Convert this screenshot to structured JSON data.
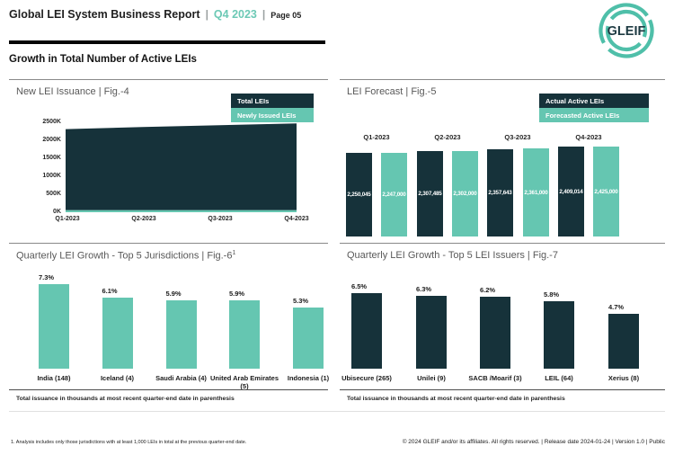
{
  "header": {
    "title": "Global LEI System Business Report",
    "separator": "|",
    "quarter": "Q4 2023",
    "page": "Page 05",
    "logo_text": "GLEIF"
  },
  "section_title": "Growth in Total Number of Active LEIs",
  "colors": {
    "dark": "#16323a",
    "teal": "#65c6b1",
    "header_accent": "#6cc9b5",
    "panel_title": "#595959"
  },
  "fig4": {
    "title": "New LEI Issuance | Fig.-4",
    "legend": [
      {
        "label": "Total LEIs"
      },
      {
        "label": "Newly Issued LEIs"
      }
    ],
    "y_ticks": [
      "2500K",
      "2000K",
      "1500K",
      "1000K",
      "500K",
      "0K"
    ],
    "x_ticks": [
      "Q1-2023",
      "Q2-2023",
      "Q3-2023",
      "Q4-2023"
    ]
  },
  "fig5": {
    "title": "LEI Forecast | Fig.-5",
    "legend": [
      {
        "label": "Actual Active LEIs"
      },
      {
        "label": "Forecasted Active LEIs"
      }
    ],
    "quarters": [
      "Q1-2023",
      "Q2-2023",
      "Q3-2023",
      "Q4-2023"
    ],
    "bars": [
      {
        "label": "2,250,045",
        "value": 2250045,
        "series": "actual"
      },
      {
        "label": "2,247,000",
        "value": 2247000,
        "series": "forecast"
      },
      {
        "label": "2,307,485",
        "value": 2307485,
        "series": "actual"
      },
      {
        "label": "2,302,000",
        "value": 2302000,
        "series": "forecast"
      },
      {
        "label": "2,357,643",
        "value": 2357643,
        "series": "actual"
      },
      {
        "label": "2,361,000",
        "value": 2361000,
        "series": "forecast"
      },
      {
        "label": "2,409,014",
        "value": 2409014,
        "series": "actual"
      },
      {
        "label": "2,425,000",
        "value": 2425000,
        "series": "forecast"
      }
    ]
  },
  "fig6": {
    "title": "Quarterly LEI Growth - Top 5 Jurisdictions | Fig.-6",
    "sup": "1",
    "bars": [
      {
        "name": "India (148)",
        "pct": "7.3%",
        "value": 7.3
      },
      {
        "name": "Iceland (4)",
        "pct": "6.1%",
        "value": 6.1
      },
      {
        "name": "Saudi Arabia (4)",
        "pct": "5.9%",
        "value": 5.9
      },
      {
        "name": "United Arab Emirates (5)",
        "pct": "5.9%",
        "value": 5.9
      },
      {
        "name": "Indonesia (1)",
        "pct": "5.3%",
        "value": 5.3
      }
    ],
    "note": "Total issuance in thousands at most recent quarter-end date in parenthesis"
  },
  "fig7": {
    "title": "Quarterly LEI Growth - Top 5 LEI Issuers | Fig.-7",
    "bars": [
      {
        "name": "Ubisecure (265)",
        "pct": "6.5%",
        "value": 6.5
      },
      {
        "name": "Unilei (9)",
        "pct": "6.3%",
        "value": 6.3
      },
      {
        "name": "SACB /Moarif (3)",
        "pct": "6.2%",
        "value": 6.2
      },
      {
        "name": "LEIL (64)",
        "pct": "5.8%",
        "value": 5.8
      },
      {
        "name": "Xerius (8)",
        "pct": "4.7%",
        "value": 4.7
      }
    ],
    "note": "Total issuance in thousands at most recent quarter-end date in parenthesis"
  },
  "footnote": "1. Analysis includes only those jurisdictions with at least 1,000 LEIs in total at the previous quarter-end date.",
  "copyright": "© 2024 GLEIF and/or its affiliates. All rights reserved.  | Release date 2024-01-24 | Version 1.0 | Public",
  "chart_data": [
    {
      "type": "area",
      "title": "New LEI Issuance | Fig.-4",
      "x": [
        "Q1-2023",
        "Q2-2023",
        "Q3-2023",
        "Q4-2023"
      ],
      "series": [
        {
          "name": "Total LEIs",
          "values": [
            2250045,
            2307485,
            2357643,
            2409014
          ]
        },
        {
          "name": "Newly Issued LEIs",
          "values": [
            60000,
            60000,
            60000,
            60000
          ]
        }
      ],
      "stacked": true,
      "ylim": [
        0,
        2500000
      ],
      "y_tick_labels": [
        "0K",
        "500K",
        "1000K",
        "1500K",
        "2000K",
        "2500K"
      ],
      "legend_position": "top-right",
      "grid": false
    },
    {
      "type": "bar",
      "title": "LEI Forecast | Fig.-5",
      "categories": [
        "Q1-2023",
        "Q2-2023",
        "Q3-2023",
        "Q4-2023"
      ],
      "series": [
        {
          "name": "Actual Active LEIs",
          "values": [
            2250045,
            2307485,
            2357643,
            2409014
          ]
        },
        {
          "name": "Forecasted Active LEIs",
          "values": [
            2247000,
            2302000,
            2361000,
            2425000
          ]
        }
      ],
      "data_labels": true,
      "legend_position": "top-right",
      "grid": false
    },
    {
      "type": "bar",
      "title": "Quarterly LEI Growth - Top 5 Jurisdictions | Fig.-6",
      "categories": [
        "India (148)",
        "Iceland (4)",
        "Saudi Arabia (4)",
        "United Arab Emirates (5)",
        "Indonesia (1)"
      ],
      "values": [
        7.3,
        6.1,
        5.9,
        5.9,
        5.3
      ],
      "unit": "%",
      "data_labels": true,
      "grid": false
    },
    {
      "type": "bar",
      "title": "Quarterly LEI Growth - Top 5 LEI Issuers | Fig.-7",
      "categories": [
        "Ubisecure (265)",
        "Unilei (9)",
        "SACB /Moarif (3)",
        "LEIL (64)",
        "Xerius (8)"
      ],
      "values": [
        6.5,
        6.3,
        6.2,
        5.8,
        4.7
      ],
      "unit": "%",
      "data_labels": true,
      "grid": false
    }
  ]
}
